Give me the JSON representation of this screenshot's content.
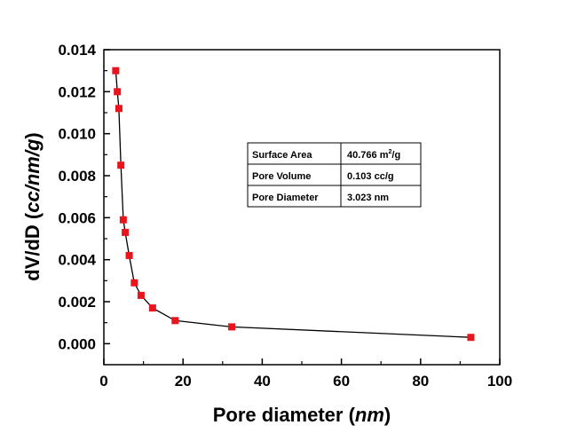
{
  "chart_data": {
    "type": "scatter",
    "title": "",
    "xlabel_main": "Pore diameter (",
    "xlabel_unit": "nm",
    "xlabel_end": ")",
    "ylabel_main": "dV/dD (",
    "ylabel_unit": "cc/nm/g",
    "ylabel_end": ")",
    "xlim": [
      0,
      100
    ],
    "ylim": [
      -0.001,
      0.014
    ],
    "x_ticks": [
      0,
      20,
      40,
      60,
      80,
      100
    ],
    "y_ticks": [
      0.0,
      0.002,
      0.004,
      0.006,
      0.008,
      0.01,
      0.012,
      0.014
    ],
    "x_tick_labels": [
      "0",
      "20",
      "40",
      "60",
      "80",
      "100"
    ],
    "y_tick_labels": [
      "0.000",
      "0.002",
      "0.004",
      "0.006",
      "0.008",
      "0.010",
      "0.012",
      "0.014"
    ],
    "grid": false,
    "legend": "none",
    "marker_color": "#e8141e",
    "line_color": "#000000",
    "series": [
      {
        "x": [
          3.0,
          3.4,
          3.8,
          4.3,
          4.9,
          5.4,
          6.4,
          7.7,
          9.4,
          12.3,
          18.0,
          32.3,
          92.7
        ],
        "y": [
          0.013,
          0.012,
          0.0112,
          0.0085,
          0.0059,
          0.0053,
          0.0042,
          0.0029,
          0.0023,
          0.0017,
          0.0011,
          0.0008,
          0.0003
        ]
      }
    ]
  },
  "info_table": {
    "rows": [
      {
        "label": "Surface Area",
        "value": "40.766 m",
        "sup": "2",
        "tail": "/g"
      },
      {
        "label": "Pore Volume",
        "value": "0.103 cc/g",
        "sup": "",
        "tail": ""
      },
      {
        "label": "Pore Diameter",
        "value": "3.023 nm",
        "sup": "",
        "tail": ""
      }
    ]
  }
}
